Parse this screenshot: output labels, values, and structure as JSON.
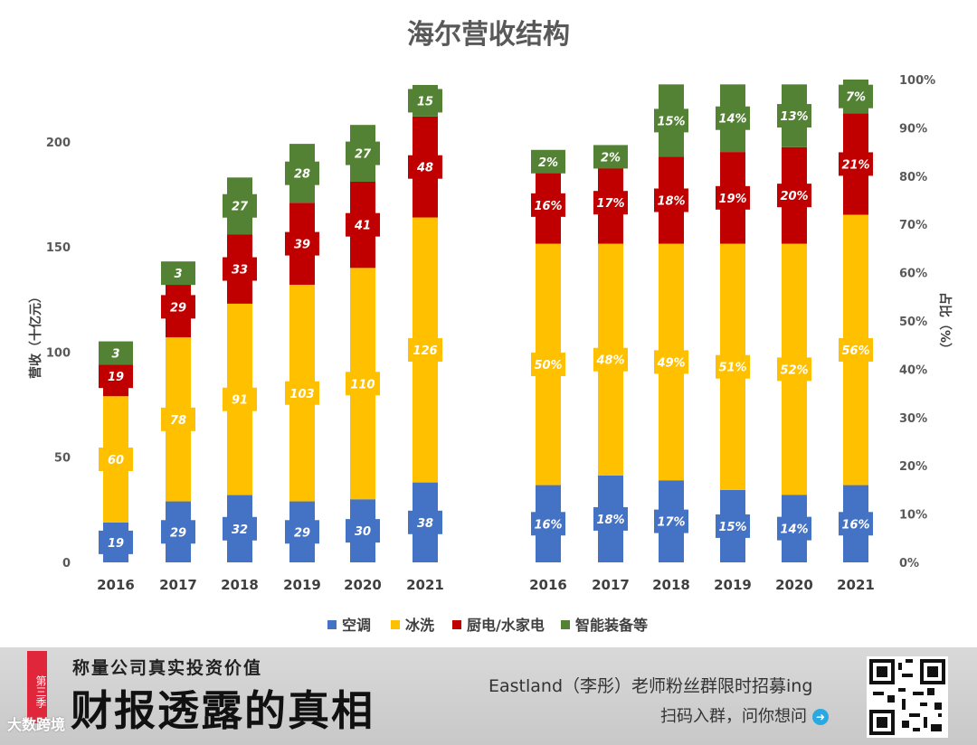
{
  "chart_data": {
    "type": "bar",
    "title": "海尔营收结构",
    "left_chart": {
      "ylabel": "营收（十亿元）",
      "ylim": [
        0,
        230
      ],
      "yticks": [
        0,
        50,
        100,
        150,
        200
      ],
      "categories": [
        "2016",
        "2017",
        "2018",
        "2019",
        "2020",
        "2021"
      ],
      "series": [
        {
          "name": "空调",
          "values": [
            19,
            29,
            32,
            29,
            30,
            38
          ]
        },
        {
          "name": "冰洗",
          "values": [
            60,
            78,
            91,
            103,
            110,
            126
          ]
        },
        {
          "name": "厨电/水家电",
          "values": [
            19,
            29,
            33,
            39,
            41,
            48
          ]
        },
        {
          "name": "智能装备等",
          "values": [
            3,
            3,
            27,
            28,
            27,
            15
          ]
        }
      ]
    },
    "right_chart": {
      "ylabel": "占比（%）",
      "ylim": [
        0,
        100
      ],
      "yticks": [
        "0%",
        "10%",
        "20%",
        "30%",
        "40%",
        "50%",
        "60%",
        "70%",
        "80%",
        "90%",
        "100%"
      ],
      "categories": [
        "2016",
        "2017",
        "2018",
        "2019",
        "2020",
        "2021"
      ],
      "series": [
        {
          "name": "空调",
          "values": [
            16,
            18,
            17,
            15,
            14,
            16
          ]
        },
        {
          "name": "冰洗",
          "values": [
            50,
            48,
            49,
            51,
            52,
            56
          ]
        },
        {
          "name": "厨电/水家电",
          "values": [
            16,
            17,
            18,
            19,
            20,
            21
          ]
        },
        {
          "name": "智能装备等",
          "values": [
            2,
            2,
            15,
            14,
            13,
            7
          ]
        }
      ]
    },
    "legend": [
      "空调",
      "冰洗",
      "厨电/水家电",
      "智能装备等"
    ],
    "legend_position": "bottom"
  },
  "colors": {
    "空调": "#4472c4",
    "冰洗": "#ffc000",
    "厨电/水家电": "#c00000",
    "智能装备等": "#548235"
  },
  "banner": {
    "season_tag": "第三季",
    "subtitle": "称量公司真实投资价值",
    "main_title": "财报透露的真相",
    "right_line1": "Eastland（李彤）老师粉丝群限时招募ing",
    "right_line2": "扫码入群，问你想问",
    "watermark": "大数跨境"
  }
}
